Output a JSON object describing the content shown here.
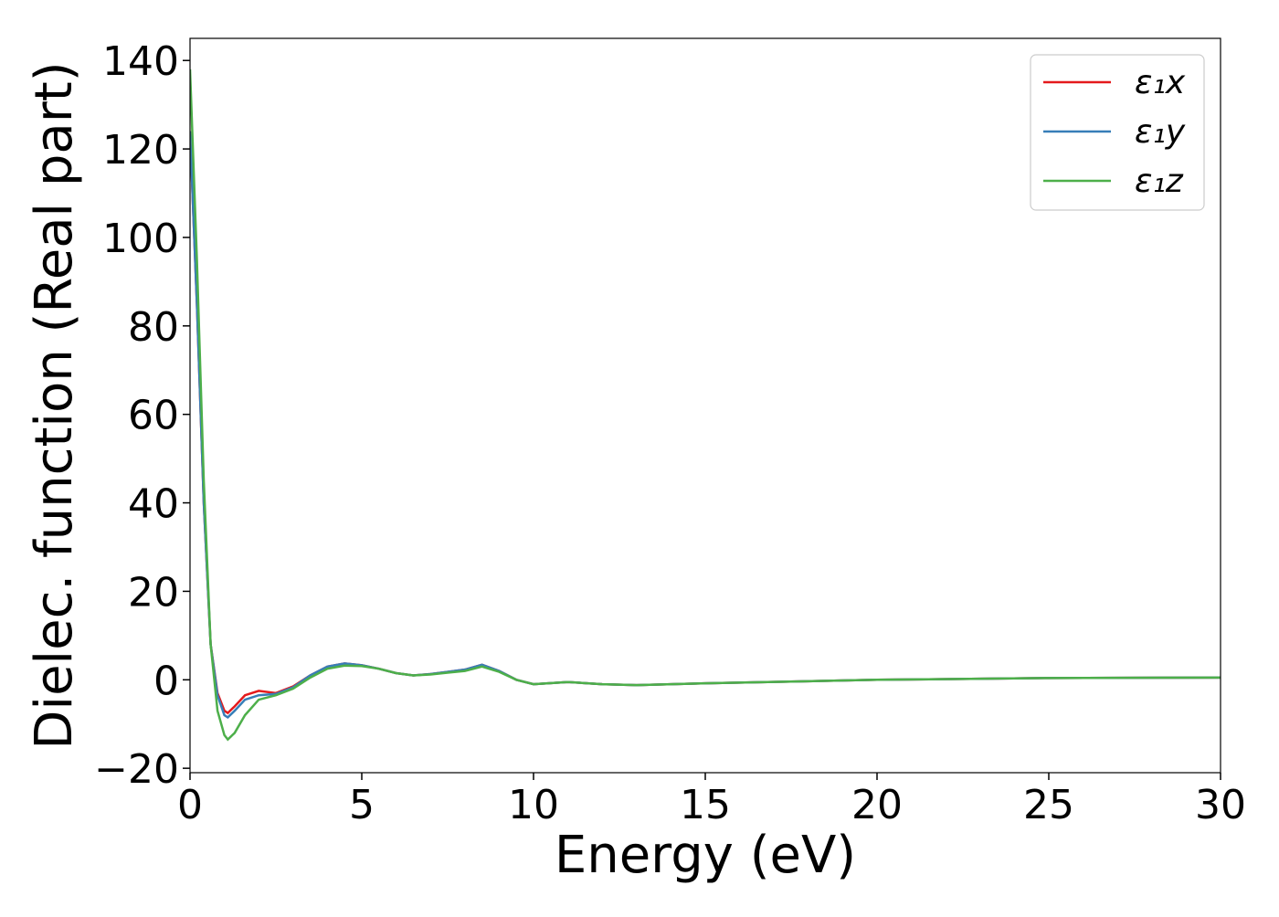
{
  "chart_data": {
    "type": "line",
    "x_label": "Energy (eV)",
    "y_label": "Dielec. function (Real part)",
    "x": [
      0,
      0.2,
      0.4,
      0.6,
      0.8,
      1.0,
      1.1,
      1.3,
      1.6,
      2,
      2.5,
      3,
      3.5,
      4,
      4.5,
      5,
      5.5,
      6,
      6.5,
      7,
      7.5,
      8,
      8.5,
      9,
      9.5,
      10,
      11,
      12,
      13,
      15,
      20,
      25,
      30
    ],
    "series": [
      {
        "name": "ε₁x",
        "color": "#e41a1c",
        "values": [
          124,
          85,
          40,
          8,
          -3,
          -7,
          -7.5,
          -6,
          -3.5,
          -2.5,
          -3,
          -1.5,
          1,
          3,
          3.7,
          3.3,
          2.5,
          1.5,
          1,
          1.3,
          1.8,
          2.3,
          3.4,
          2,
          0,
          -1,
          -0.5,
          -1,
          -1.2,
          -0.8,
          0,
          0.4,
          0.5
        ]
      },
      {
        "name": "ε₁y",
        "color": "#377eb8",
        "values": [
          124,
          85,
          40,
          8,
          -3.5,
          -8,
          -8.5,
          -7,
          -4.5,
          -3.5,
          -3.2,
          -1.7,
          1,
          3,
          3.7,
          3.3,
          2.5,
          1.5,
          1,
          1.3,
          1.8,
          2.3,
          3.4,
          2,
          0,
          -1,
          -0.5,
          -1,
          -1.2,
          -0.8,
          0,
          0.4,
          0.5
        ]
      },
      {
        "name": "ε₁z",
        "color": "#4daf4a",
        "values": [
          138,
          95,
          45,
          8,
          -7,
          -12.5,
          -13.5,
          -12,
          -8,
          -4.5,
          -3.5,
          -2,
          0.5,
          2.5,
          3.2,
          3.1,
          2.5,
          1.5,
          1,
          1.2,
          1.6,
          2,
          3,
          1.8,
          0,
          -1,
          -0.5,
          -1,
          -1.2,
          -0.8,
          0,
          0.4,
          0.5
        ]
      }
    ],
    "xlim": [
      0,
      30
    ],
    "xticks": [
      0,
      5,
      10,
      15,
      20,
      25,
      30
    ],
    "ylim": [
      -21,
      145
    ],
    "yticks": [
      {
        "value": -20,
        "label": "−20"
      },
      0,
      20,
      40,
      60,
      80,
      100,
      120,
      140
    ],
    "legend": "upper right"
  }
}
